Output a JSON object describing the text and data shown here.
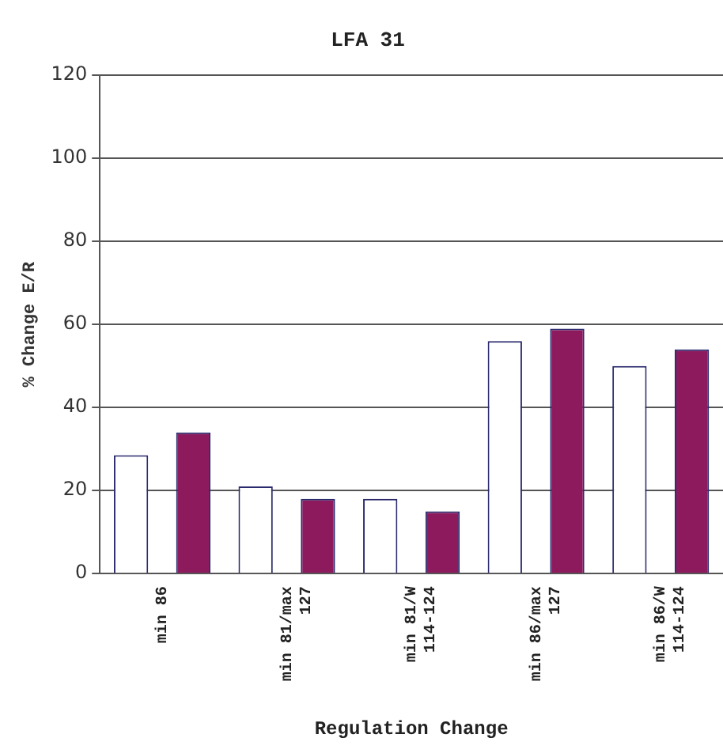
{
  "chart_data": {
    "type": "bar",
    "title": "LFA 31",
    "xlabel": "Regulation Change",
    "ylabel": "% Change E/R",
    "categories": [
      "min 86",
      "min 81/max\n127",
      "min 81/W\n114-124",
      "min 86/max\n127",
      "min 86/W\n114-124"
    ],
    "series": [
      {
        "color": "#ffffff",
        "values": [
          28.5,
          21,
          18,
          56,
          50
        ]
      },
      {
        "color": "#8e1a5e",
        "values": [
          34,
          18,
          15,
          59,
          54
        ]
      }
    ],
    "ylim": [
      0,
      120
    ],
    "yticks": [
      0,
      20,
      40,
      60,
      80,
      100,
      120
    ],
    "grid": "y",
    "legend": false
  }
}
